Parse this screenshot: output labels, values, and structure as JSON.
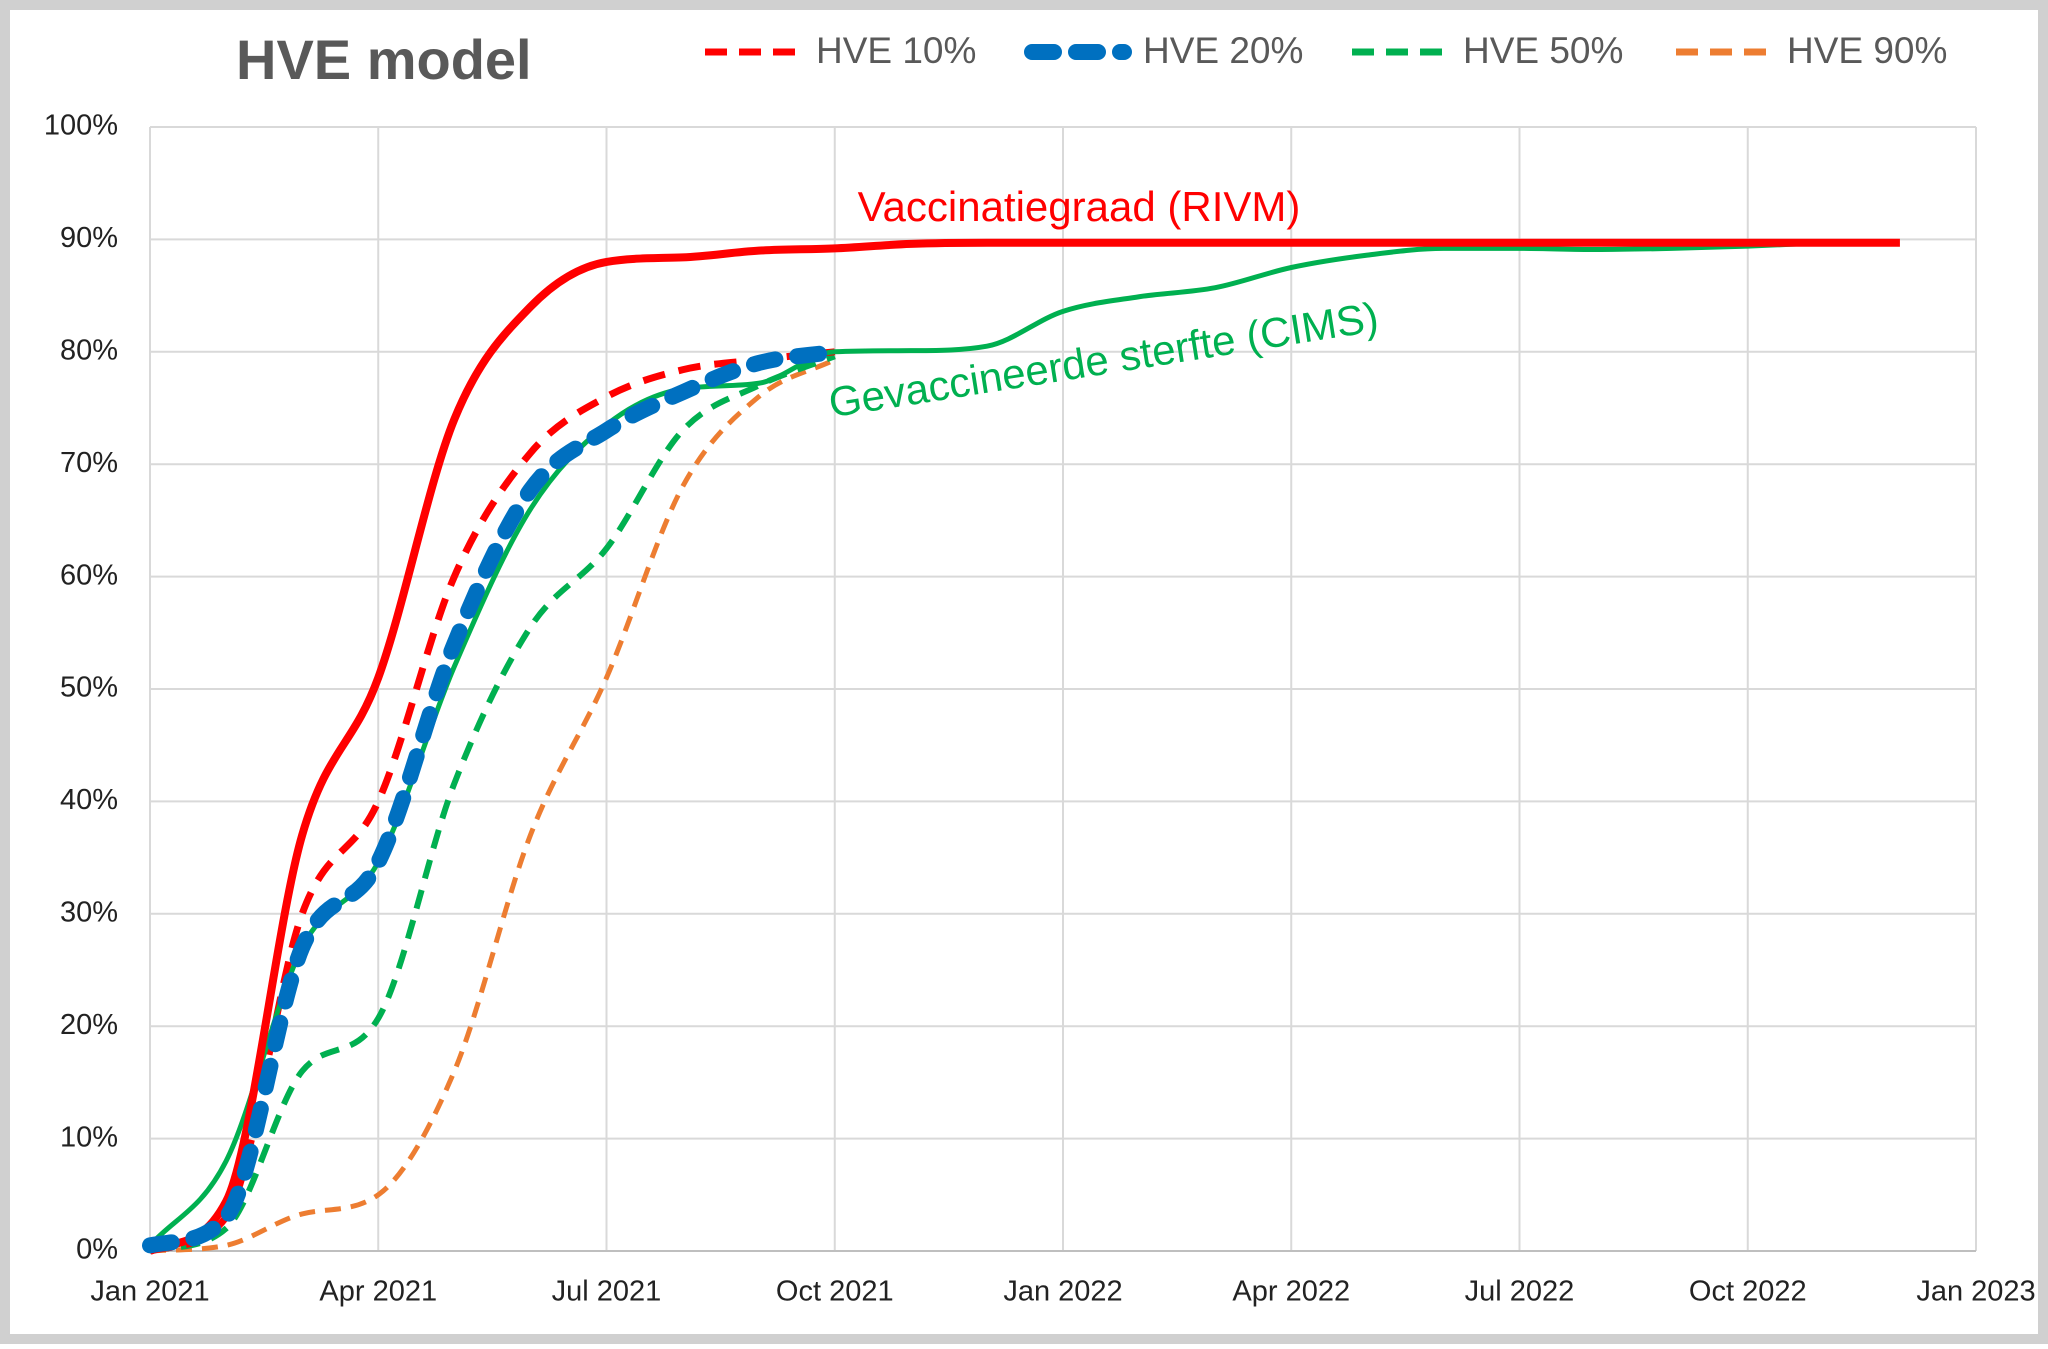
{
  "chart_data": {
    "type": "line",
    "title": "HVE model",
    "x": [
      "2021-01",
      "2021-02",
      "2021-03",
      "2021-04",
      "2021-05",
      "2021-06",
      "2021-07",
      "2021-08",
      "2021-09",
      "2021-10",
      "2021-11",
      "2021-12",
      "2022-01",
      "2022-02",
      "2022-03",
      "2022-04",
      "2022-05",
      "2022-06",
      "2022-07",
      "2022-08",
      "2022-09",
      "2022-10",
      "2022-11",
      "2022-12"
    ],
    "xlim": [
      "2021-01",
      "2023-01"
    ],
    "xticks": [
      {
        "value": "2021-01",
        "label": "Jan 2021"
      },
      {
        "value": "2021-04",
        "label": "Apr 2021"
      },
      {
        "value": "2021-07",
        "label": "Jul 2021"
      },
      {
        "value": "2021-10",
        "label": "Oct 2021"
      },
      {
        "value": "2022-01",
        "label": "Jan 2022"
      },
      {
        "value": "2022-04",
        "label": "Apr 2022"
      },
      {
        "value": "2022-07",
        "label": "Jul 2022"
      },
      {
        "value": "2022-10",
        "label": "Oct 2022"
      },
      {
        "value": "2023-01",
        "label": "Jan 2023"
      }
    ],
    "ylim": [
      0,
      100
    ],
    "yticks": [
      {
        "value": 0,
        "label": "0%"
      },
      {
        "value": 10,
        "label": "10%"
      },
      {
        "value": 20,
        "label": "20%"
      },
      {
        "value": 30,
        "label": "30%"
      },
      {
        "value": 40,
        "label": "40%"
      },
      {
        "value": 50,
        "label": "50%"
      },
      {
        "value": 60,
        "label": "60%"
      },
      {
        "value": 70,
        "label": "70%"
      },
      {
        "value": 80,
        "label": "80%"
      },
      {
        "value": 90,
        "label": "90%"
      },
      {
        "value": 100,
        "label": "100%"
      }
    ],
    "grid": true,
    "series": [
      {
        "label": "Vaccinatiegraad (RIVM)",
        "color": "#ff0000",
        "dash": "solid",
        "width": 8,
        "values": [
          0,
          4.4,
          37,
          51,
          74,
          84,
          88,
          88.4,
          89,
          89.2,
          89.6,
          89.7,
          89.7,
          89.7,
          89.7,
          89.7,
          89.7,
          89.7,
          89.7,
          89.7,
          89.7,
          89.7,
          89.7,
          89.7
        ]
      },
      {
        "label": "Gevaccineerde sterfte (CIMS)",
        "color": "#00b050",
        "dash": "solid",
        "width": 5,
        "values": [
          0.5,
          8,
          27,
          34.6,
          52,
          66,
          73.5,
          76.7,
          77.2,
          80,
          80.1,
          80.5,
          83.6,
          84.9,
          85.7,
          87.5,
          88.6,
          89.2,
          89.2,
          89.1,
          89.2,
          89.4,
          89.7,
          null
        ]
      },
      {
        "name": "HVE 10%",
        "color": "#ff0000",
        "dash": "dashed",
        "width": 7,
        "values": [
          0,
          3,
          30,
          40,
          60,
          71,
          76,
          78.4,
          79.3,
          80,
          null,
          null,
          null,
          null,
          null,
          null,
          null,
          null,
          null,
          null,
          null,
          null,
          null,
          null
        ]
      },
      {
        "name": "HVE 20%",
        "color": "#0070c0",
        "dash": "thick",
        "width": 16,
        "values": [
          0.5,
          3,
          27,
          34.6,
          54,
          67.7,
          73,
          76.4,
          79,
          80,
          null,
          null,
          null,
          null,
          null,
          null,
          null,
          null,
          null,
          null,
          null,
          null,
          null,
          null
        ]
      },
      {
        "name": "HVE 50%",
        "color": "#00b050",
        "dash": "dashed",
        "width": 6,
        "values": [
          0,
          2,
          16,
          20.7,
          41.6,
          55.5,
          62.5,
          73,
          77,
          79.6,
          null,
          null,
          null,
          null,
          null,
          null,
          null,
          null,
          null,
          null,
          null,
          null,
          null,
          null
        ]
      },
      {
        "name": "HVE 90%",
        "color": "#ed7d31",
        "dash": "dashed",
        "width": 5,
        "values": [
          0,
          0.5,
          3.3,
          5,
          16,
          37,
          51,
          68,
          76,
          79.3,
          null,
          null,
          null,
          null,
          null,
          null,
          null,
          null,
          null,
          null,
          null,
          null,
          null,
          null
        ]
      }
    ]
  }
}
